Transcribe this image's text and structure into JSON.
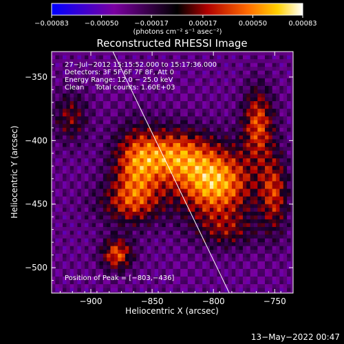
{
  "chart_data": {
    "type": "heatmap",
    "title": "Reconstructed RHESSI Image",
    "xlabel": "Heliocentric X (arcsec)",
    "ylabel": "Heliocentric Y (arcsec)",
    "xlim": [
      -932,
      -735
    ],
    "ylim": [
      -520,
      -330
    ],
    "x_ticks": [
      "−900",
      "−850",
      "−800",
      "−750"
    ],
    "x_tick_values": [
      -900,
      -850,
      -800,
      -750
    ],
    "y_ticks": [
      "−350",
      "−400",
      "−450",
      "−500"
    ],
    "y_tick_values": [
      -350,
      -400,
      -450,
      -500
    ],
    "colorbar": {
      "min": -0.00083,
      "max": 0.00083,
      "tick_labels": [
        "−0.00083",
        "−0.00050",
        "−0.00017",
        "0.00017",
        "0.00050",
        "0.00083"
      ],
      "tick_values": [
        -0.00083,
        -0.0005,
        -0.00017,
        0.00017,
        0.0005,
        0.00083
      ],
      "unit_label": "(photons cm⁻² s⁻¹ asec⁻²)",
      "colors": [
        "#0000ff",
        "#7a00a0",
        "#000000",
        "#b00000",
        "#ff6a00",
        "#ffd000",
        "#ffffff"
      ]
    },
    "annotations": [
      "27−Jul−2012 15:15:52.000 to 15:17:36.000",
      "Detectors: 3F 5F 6F 7F 8F, Att 0",
      "Energy Range: 12.0 − 25.0 keV",
      "Clean     Total counts: 1.60E+03"
    ],
    "peak_label": "Position of Peak = [−803,−436]",
    "peak": [
      -803,
      -436
    ],
    "limb_line": [
      [
        -882,
        -330
      ],
      [
        -787,
        -520
      ]
    ],
    "sources": [
      {
        "x": -800,
        "y": -432,
        "amp": 1.0,
        "sx": 22,
        "sy": 20
      },
      {
        "x": -835,
        "y": -410,
        "amp": 0.75,
        "sx": 20,
        "sy": 15
      },
      {
        "x": -865,
        "y": -420,
        "amp": 0.7,
        "sx": 14,
        "sy": 22
      },
      {
        "x": -870,
        "y": -448,
        "amp": 0.45,
        "sx": 20,
        "sy": 12
      },
      {
        "x": -765,
        "y": -385,
        "amp": 0.72,
        "sx": 9,
        "sy": 20
      },
      {
        "x": -752,
        "y": -440,
        "amp": 0.6,
        "sx": 8,
        "sy": 22
      },
      {
        "x": -880,
        "y": -488,
        "amp": 0.75,
        "sx": 9,
        "sy": 9
      },
      {
        "x": -918,
        "y": -380,
        "amp": 0.45,
        "sx": 10,
        "sy": 14
      },
      {
        "x": -790,
        "y": -470,
        "amp": 0.35,
        "sx": 18,
        "sy": 10
      }
    ],
    "grid": false
  },
  "footer": {
    "date": "13−May−2022 00:47"
  }
}
